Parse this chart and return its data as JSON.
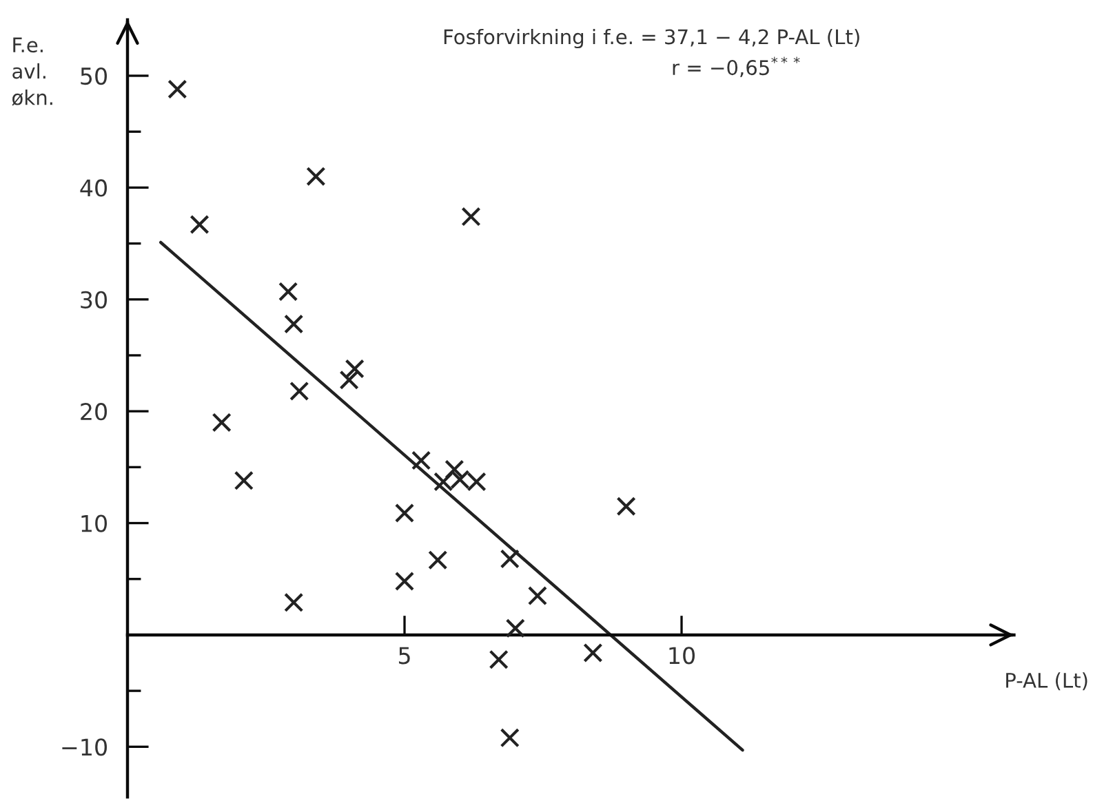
{
  "chart_data": {
    "type": "scatter",
    "annotations": [
      "Fosforvirkning i f.e. = 37,1 − 4,2 P-AL (Lt)",
      "r = −0,65$^{***}$"
    ],
    "xlabel": "P-AL (Lt)",
    "ylabel": "F.e.\navl.\nøkn.",
    "xlim": [
      0,
      16
    ],
    "ylim": [
      -14.5,
      55
    ],
    "xticks": [
      5,
      10
    ],
    "yticks": [
      {
        "value": -10,
        "label": "−10"
      },
      {
        "value": -5,
        "label": null
      },
      {
        "value": 5,
        "label": null
      },
      10,
      {
        "value": 15,
        "label": null
      },
      20,
      {
        "value": 25,
        "label": null
      },
      30,
      {
        "value": 35,
        "label": null
      },
      40,
      {
        "value": 45,
        "label": null
      },
      50
    ],
    "series": [
      {
        "color": "#222222",
        "marker": "cross",
        "x": [
          0.9,
          1.3,
          3.4,
          6.2,
          2.9,
          3.0,
          3.1,
          4.0,
          4.1,
          1.7,
          2.1,
          3.0,
          5.0,
          5.0,
          5.3,
          5.6,
          5.7,
          5.9,
          6.0,
          6.3,
          6.9,
          7.4,
          7.0,
          6.7,
          6.9,
          9.0,
          8.4
        ],
        "values": [
          48.8,
          36.7,
          41.0,
          37.4,
          30.7,
          27.8,
          21.8,
          22.8,
          23.8,
          19.0,
          13.8,
          2.9,
          10.9,
          4.8,
          15.6,
          6.7,
          13.7,
          14.8,
          13.9,
          13.7,
          6.8,
          3.5,
          0.6,
          -2.2,
          -9.2,
          11.5,
          -1.6
        ]
      },
      {
        "type": "line",
        "color": "#222222",
        "marker": "none",
        "x": [
          0.6,
          11.1
        ],
        "values": [
          35.1,
          -10.3
        ]
      }
    ]
  }
}
